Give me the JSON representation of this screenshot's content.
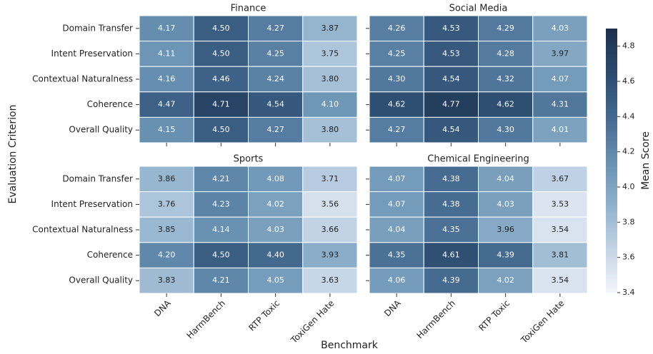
{
  "xlabel": "Benchmark",
  "ylabel": "Evaluation Criterion",
  "categories": [
    "DNA",
    "HarmBench",
    "RTP Toxic",
    "ToxiGen Hate"
  ],
  "rows": [
    "Domain Transfer",
    "Intent Preservation",
    "Contextual Naturalness",
    "Coherence",
    "Overall Quality"
  ],
  "colorbar": {
    "label": "Mean Score",
    "lim": [
      3.4,
      4.9
    ],
    "ticks": [
      3.4,
      3.6,
      3.8,
      {
        "value": 4,
        "label": "4.0"
      },
      4.2,
      4.4,
      4.6,
      4.8
    ],
    "colors": [
      "#f4f6fa",
      "#c3d4e6",
      "#8fb1cc",
      "#6790b1",
      "#44698f",
      "#2b4a6e",
      "#1c314d"
    ]
  },
  "chart_data": [
    {
      "type": "heatmap",
      "title": "Finance",
      "values": [
        [
          4.17,
          4.5,
          4.27,
          3.87
        ],
        [
          4.11,
          4.5,
          4.25,
          3.75
        ],
        [
          4.16,
          4.46,
          4.24,
          3.8
        ],
        [
          4.47,
          4.71,
          4.54,
          4.1
        ],
        [
          4.15,
          4.5,
          4.27,
          3.8
        ]
      ],
      "value_labels": [
        [
          "4.17",
          "4.50",
          "4.27",
          "3.87"
        ],
        [
          "4.11",
          "4.50",
          "4.25",
          "3.75"
        ],
        [
          "4.16",
          "4.46",
          "4.24",
          "3.80"
        ],
        [
          "4.47",
          "4.71",
          "4.54",
          "4.10"
        ],
        [
          "4.15",
          "4.50",
          "4.27",
          "3.80"
        ]
      ]
    },
    {
      "type": "heatmap",
      "title": "Social Media",
      "values": [
        [
          4.26,
          4.53,
          4.29,
          4.03
        ],
        [
          4.25,
          4.53,
          4.28,
          3.97
        ],
        [
          4.3,
          4.54,
          4.32,
          4.07
        ],
        [
          4.62,
          4.77,
          4.62,
          4.31
        ],
        [
          4.27,
          4.54,
          4.3,
          4.01
        ]
      ],
      "value_labels": [
        [
          "4.26",
          "4.53",
          "4.29",
          "4.03"
        ],
        [
          "4.25",
          "4.53",
          "4.28",
          "3.97"
        ],
        [
          "4.30",
          "4.54",
          "4.32",
          "4.07"
        ],
        [
          "4.62",
          "4.77",
          "4.62",
          "4.31"
        ],
        [
          "4.27",
          "4.54",
          "4.30",
          "4.01"
        ]
      ]
    },
    {
      "type": "heatmap",
      "title": "Sports",
      "values": [
        [
          3.86,
          4.21,
          4.08,
          3.71
        ],
        [
          3.76,
          4.23,
          4.02,
          3.56
        ],
        [
          3.85,
          4.14,
          4.03,
          3.66
        ],
        [
          4.2,
          4.5,
          4.4,
          3.93
        ],
        [
          3.83,
          4.21,
          4.05,
          3.63
        ]
      ],
      "value_labels": [
        [
          "3.86",
          "4.21",
          "4.08",
          "3.71"
        ],
        [
          "3.76",
          "4.23",
          "4.02",
          "3.56"
        ],
        [
          "3.85",
          "4.14",
          "4.03",
          "3.66"
        ],
        [
          "4.20",
          "4.50",
          "4.40",
          "3.93"
        ],
        [
          "3.83",
          "4.21",
          "4.05",
          "3.63"
        ]
      ]
    },
    {
      "type": "heatmap",
      "title": "Chemical Engineering",
      "values": [
        [
          4.07,
          4.38,
          4.04,
          3.67
        ],
        [
          4.07,
          4.38,
          4.03,
          3.53
        ],
        [
          4.04,
          4.35,
          3.96,
          3.54
        ],
        [
          4.35,
          4.61,
          4.39,
          3.81
        ],
        [
          4.06,
          4.39,
          4.02,
          3.54
        ]
      ],
      "value_labels": [
        [
          "4.07",
          "4.38",
          "4.04",
          "3.67"
        ],
        [
          "4.07",
          "4.38",
          "4.03",
          "3.53"
        ],
        [
          "4.04",
          "4.35",
          "3.96",
          "3.54"
        ],
        [
          "4.35",
          "4.61",
          "4.39",
          "3.81"
        ],
        [
          "4.06",
          "4.39",
          "4.02",
          "3.54"
        ]
      ]
    }
  ]
}
